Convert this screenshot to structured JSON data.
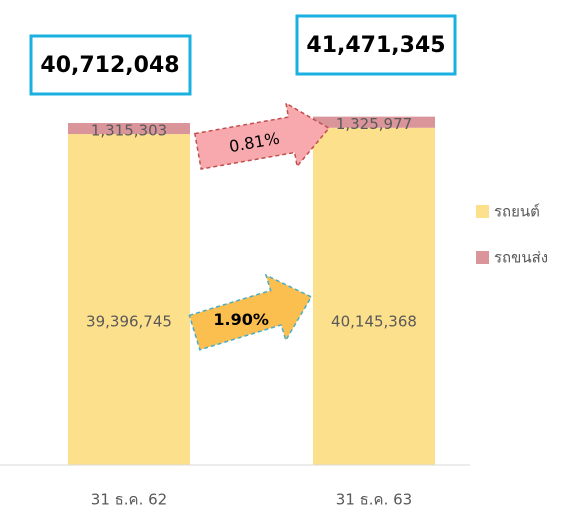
{
  "chart_data": {
    "type": "stacked_bar",
    "categories": [
      "31 ธ.ค. 62",
      "31 ธ.ค. 63"
    ],
    "series": [
      {
        "name": "รถยนต์",
        "color": "#fde08b",
        "values": [
          39396745,
          40145368
        ],
        "value_labels": [
          "39,396,745",
          "40,145,368"
        ]
      },
      {
        "name": "รถขนส่ง",
        "color": "#d9959a",
        "values": [
          1315303,
          1325977
        ],
        "value_labels": [
          "1,315,303",
          "1,325,977"
        ]
      }
    ],
    "totals": [
      "40,712,048",
      "41,471,345"
    ],
    "changes": [
      "0.81%",
      "1.90%"
    ],
    "ylim": [
      0,
      45000000
    ],
    "legend": "right"
  }
}
